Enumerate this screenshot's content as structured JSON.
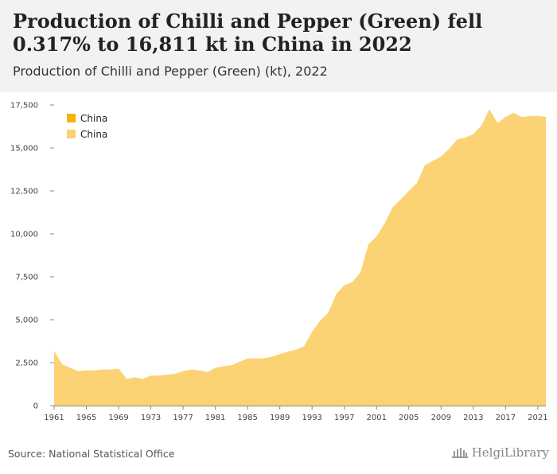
{
  "title": "Production of Chilli and Pepper (Green) fell 0.317% to 16,811 kt in China in 2022",
  "subtitle": "Production of Chilli and Pepper (Green) (kt), 2022",
  "source": "Source: National Statistical Office",
  "brand": "HelgiLibrary",
  "colors": {
    "area": "#fbd374",
    "legend_dark": "#f5b400",
    "legend_light": "#fbd374",
    "axis_text": "#444444",
    "background": "#ffffff",
    "header": "#f2f2f2"
  },
  "chart_data": {
    "type": "area",
    "title": "",
    "xlabel": "",
    "ylabel": "",
    "ylim": [
      0,
      17500
    ],
    "y_ticks": [
      0,
      2500,
      5000,
      7500,
      10000,
      12500,
      15000,
      17500
    ],
    "y_tick_labels": [
      "0",
      "2,500",
      "5,000",
      "7,500",
      "10,000",
      "12,500",
      "15,000",
      "17,500"
    ],
    "x_ticks": [
      1961,
      1965,
      1969,
      1973,
      1977,
      1981,
      1985,
      1989,
      1993,
      1997,
      2001,
      2005,
      2009,
      2013,
      2017,
      2021
    ],
    "grid": false,
    "legend": {
      "placement": "top-left",
      "entries": [
        "China",
        "China"
      ]
    },
    "x": [
      1961,
      1962,
      1963,
      1964,
      1965,
      1966,
      1967,
      1968,
      1969,
      1970,
      1971,
      1972,
      1973,
      1974,
      1975,
      1976,
      1977,
      1978,
      1979,
      1980,
      1981,
      1982,
      1983,
      1984,
      1985,
      1986,
      1987,
      1988,
      1989,
      1990,
      1991,
      1992,
      1993,
      1994,
      1995,
      1996,
      1997,
      1998,
      1999,
      2000,
      2001,
      2002,
      2003,
      2004,
      2005,
      2006,
      2007,
      2008,
      2009,
      2010,
      2011,
      2012,
      2013,
      2014,
      2015,
      2016,
      2017,
      2018,
      2019,
      2020,
      2021,
      2022
    ],
    "series": [
      {
        "name": "China",
        "values": [
          3200,
          2400,
          2200,
          2000,
          2050,
          2050,
          2100,
          2100,
          2150,
          1550,
          1650,
          1550,
          1750,
          1750,
          1800,
          1850,
          2000,
          2100,
          2050,
          1950,
          2200,
          2300,
          2350,
          2550,
          2750,
          2750,
          2750,
          2850,
          3000,
          3150,
          3250,
          3450,
          4300,
          4950,
          5400,
          6500,
          7000,
          7200,
          7750,
          9400,
          9850,
          10600,
          11550,
          12000,
          12500,
          12950,
          14000,
          14250,
          14500,
          14950,
          15500,
          15600,
          15800,
          16300,
          17250,
          16450,
          16800,
          17050,
          16800,
          16850,
          16865,
          16811
        ]
      }
    ]
  }
}
